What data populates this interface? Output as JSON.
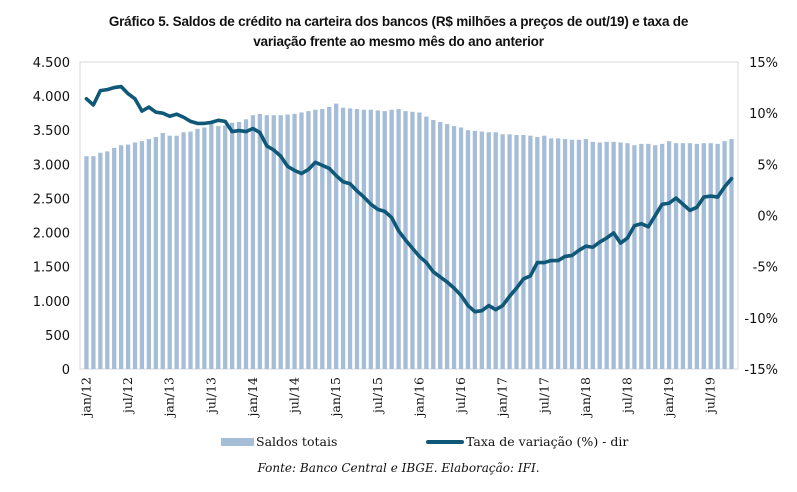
{
  "title_lines": [
    "Gráfico 5. Saldos de crédito na carteira dos bancos (R$ milhões a preços de out/19) e taxa de",
    "variação frente ao mesmo mês do ano anterior"
  ],
  "legend": {
    "bar_label": "Saldos totais",
    "line_label": "Taxa de variação (%) - dir"
  },
  "source": "Fonte: Banco Central e IBGE. Elaboração: IFI.",
  "colors": {
    "bar": "#a5bdd6",
    "line": "#0f5878",
    "frame": "#d9d9d9"
  },
  "chart_data": {
    "type": "bar+line",
    "title": "Gráfico 5. Saldos de crédito na carteira dos bancos (R$ milhões a preços de out/19) e taxa de variação frente ao mesmo mês do ano anterior",
    "xlabel": "",
    "ylabel_left": "",
    "ylabel_right": "",
    "ylim_left": [
      0,
      4500
    ],
    "ylim_right": [
      -15,
      15
    ],
    "yticks_left": [
      "0",
      "500",
      "1.000",
      "1.500",
      "2.000",
      "2.500",
      "3.000",
      "3.500",
      "4.000",
      "4.500"
    ],
    "yticks_right": [
      "-15%",
      "-10%",
      "-5%",
      "0%",
      "5%",
      "10%",
      "15%"
    ],
    "xtick_labels": [
      "jan/12",
      "jul/12",
      "jan/13",
      "jul/13",
      "jan/14",
      "jul/14",
      "jan/15",
      "jul/15",
      "jan/16",
      "jul/16",
      "jan/17",
      "jul/17",
      "jan/18",
      "jul/18",
      "jan/19",
      "jul/19"
    ],
    "x_start": "jan/12",
    "x_end": "oct/19",
    "n_months": 94,
    "grid": false,
    "legend_position": "bottom",
    "series": [
      {
        "name": "Saldos totais",
        "type": "bar",
        "axis": "left",
        "values": [
          3120,
          3120,
          3170,
          3190,
          3240,
          3280,
          3290,
          3320,
          3340,
          3370,
          3400,
          3460,
          3420,
          3420,
          3470,
          3480,
          3520,
          3540,
          3600,
          3560,
          3570,
          3610,
          3620,
          3660,
          3720,
          3740,
          3720,
          3720,
          3720,
          3730,
          3740,
          3760,
          3780,
          3800,
          3810,
          3840,
          3890,
          3830,
          3820,
          3810,
          3800,
          3800,
          3790,
          3780,
          3800,
          3810,
          3780,
          3770,
          3760,
          3700,
          3650,
          3620,
          3590,
          3560,
          3540,
          3500,
          3490,
          3480,
          3470,
          3470,
          3440,
          3440,
          3430,
          3430,
          3420,
          3400,
          3420,
          3380,
          3380,
          3370,
          3360,
          3360,
          3370,
          3330,
          3320,
          3330,
          3330,
          3320,
          3310,
          3280,
          3300,
          3300,
          3280,
          3300,
          3340,
          3310,
          3310,
          3310,
          3300,
          3310,
          3310,
          3300,
          3340,
          3370
        ]
      },
      {
        "name": "Taxa de variação (%) - dir",
        "type": "line",
        "axis": "right",
        "values": [
          11.4,
          10.8,
          12.2,
          12.3,
          12.5,
          12.6,
          11.9,
          11.4,
          10.2,
          10.6,
          10.1,
          10.0,
          9.7,
          9.9,
          9.6,
          9.2,
          9.0,
          9.0,
          9.1,
          9.3,
          9.2,
          8.2,
          8.3,
          8.2,
          8.5,
          8.1,
          6.8,
          6.4,
          5.8,
          4.8,
          4.4,
          4.1,
          4.5,
          5.2,
          4.9,
          4.6,
          3.9,
          3.3,
          3.1,
          2.4,
          1.8,
          1.1,
          0.6,
          0.4,
          -0.2,
          -1.5,
          -2.4,
          -3.2,
          -4.0,
          -4.6,
          -5.5,
          -6.0,
          -6.5,
          -7.1,
          -7.8,
          -8.8,
          -9.4,
          -9.3,
          -8.8,
          -9.2,
          -8.8,
          -7.9,
          -7.1,
          -6.2,
          -5.9,
          -4.6,
          -4.6,
          -4.4,
          -4.4,
          -4.0,
          -3.9,
          -3.4,
          -3.0,
          -3.1,
          -2.6,
          -2.2,
          -1.7,
          -2.7,
          -2.2,
          -1.0,
          -0.8,
          -1.1,
          0.0,
          1.1,
          1.2,
          1.7,
          1.1,
          0.5,
          0.8,
          1.8,
          1.9,
          1.8,
          2.8,
          3.6
        ]
      }
    ]
  }
}
